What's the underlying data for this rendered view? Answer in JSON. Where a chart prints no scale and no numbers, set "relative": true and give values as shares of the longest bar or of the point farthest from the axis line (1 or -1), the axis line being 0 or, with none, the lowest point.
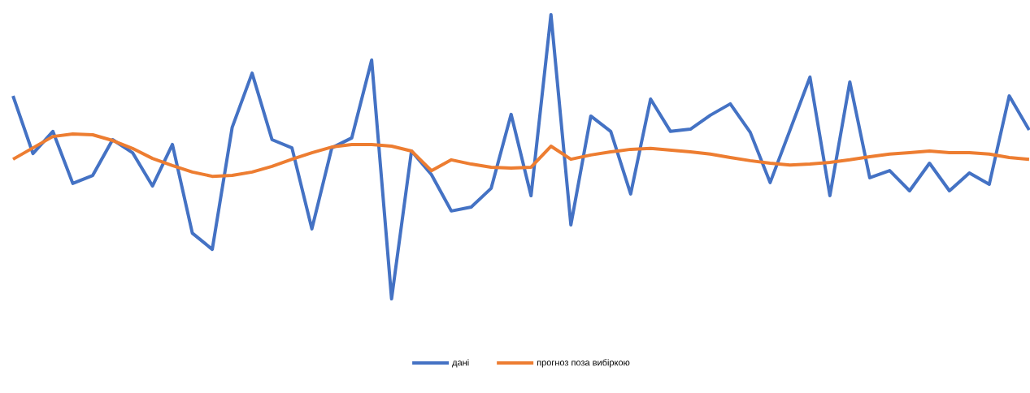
{
  "chart_data": {
    "type": "line",
    "relative": true,
    "legend": "bottom",
    "categories": [
      null,
      null,
      null,
      null,
      null,
      null,
      null,
      null,
      null,
      null,
      null,
      null,
      null,
      null,
      null,
      null,
      null,
      null,
      null,
      null,
      null,
      null,
      null,
      null,
      null,
      null,
      null,
      null,
      null,
      null,
      null,
      null,
      null,
      null,
      null,
      null,
      null,
      null,
      null,
      null,
      null,
      null,
      null,
      null,
      null,
      null,
      null,
      null,
      null,
      null,
      null,
      null
    ],
    "series": [
      {
        "name": "дані",
        "color": "#4472c4",
        "values": [
          0.714,
          0.511,
          0.589,
          0.406,
          0.434,
          0.56,
          0.514,
          0.397,
          0.543,
          0.231,
          0.174,
          0.603,
          0.794,
          0.56,
          0.531,
          0.246,
          0.531,
          0.566,
          0.84,
          0,
          0.52,
          0.437,
          0.309,
          0.323,
          0.389,
          0.649,
          0.363,
          1,
          0.26,
          0.643,
          0.589,
          0.369,
          0.703,
          0.589,
          0.597,
          0.646,
          0.686,
          0.586,
          0.409,
          0.594,
          0.78,
          0.363,
          0.763,
          0.426,
          0.451,
          0.38,
          0.477,
          0.38,
          0.443,
          0.403,
          0.714,
          0.594
        ]
      },
      {
        "name": "прогноз поза вибіркою",
        "color": "#ed7d31",
        "values": [
          0.491,
          0.531,
          0.571,
          0.58,
          0.577,
          0.557,
          0.529,
          0.494,
          0.469,
          0.446,
          0.431,
          0.434,
          0.446,
          0.466,
          0.491,
          0.514,
          0.534,
          0.543,
          0.543,
          0.537,
          0.52,
          0.451,
          0.489,
          0.474,
          0.463,
          0.46,
          0.463,
          0.537,
          0.491,
          0.506,
          0.517,
          0.526,
          0.529,
          0.523,
          0.517,
          0.509,
          0.497,
          0.486,
          0.477,
          0.471,
          0.474,
          0.48,
          0.489,
          0.5,
          0.509,
          0.514,
          0.52,
          0.514,
          0.514,
          0.509,
          0.497,
          0.491
        ]
      }
    ]
  }
}
